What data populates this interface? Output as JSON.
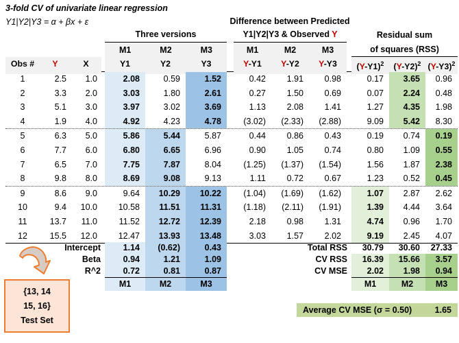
{
  "titles": {
    "line1": "3-fold CV of univariate linear regression",
    "line2": "Y1|Y2|Y3 = α + βx + ε"
  },
  "headers": {
    "three_versions": "Three versions",
    "diff_title": "Difference between Predicted",
    "observed": {
      "pre": "Y1|Y2|Y3 & Observed ",
      "y": "Y"
    },
    "rss1": "Residual sum",
    "rss2": "of squares (RSS)",
    "m": [
      "M1",
      "M2",
      "M3"
    ]
  },
  "cols": {
    "obs": "Obs #",
    "yv": "Y",
    "xv": "X",
    "models": [
      "Y1",
      "Y2",
      "Y3"
    ],
    "diffs": [
      {
        "y": "Y",
        "rest": "-Y1"
      },
      {
        "y": "Y",
        "rest": "-Y2"
      },
      {
        "y": "Y",
        "rest": "-Y3"
      }
    ],
    "squares": [
      {
        "pre": "(",
        "y": "Y",
        "rest": "-Y1)",
        "sup": "2"
      },
      {
        "pre": "(",
        "y": "Y",
        "rest": "-Y2)",
        "sup": "2"
      },
      {
        "pre": "(",
        "y": "Y",
        "rest": "-Y3)",
        "sup": "2"
      }
    ]
  },
  "rows": [
    {
      "obs": "1",
      "y": "2.5",
      "x": "1.0",
      "y1": "2.08",
      "y2": "0.59",
      "y3": "1.52",
      "d1": "0.42",
      "d2": "1.91",
      "d3": "0.98",
      "s1": "0.17",
      "s2": "3.65",
      "s3": "0.96",
      "fold": 1
    },
    {
      "obs": "2",
      "y": "3.3",
      "x": "2.0",
      "y1": "3.03",
      "y2": "1.80",
      "y3": "2.61",
      "d1": "0.27",
      "d2": "1.50",
      "d3": "0.69",
      "s1": "0.07",
      "s2": "2.24",
      "s3": "0.48",
      "fold": 1
    },
    {
      "obs": "3",
      "y": "5.1",
      "x": "3.0",
      "y1": "3.97",
      "y2": "3.02",
      "y3": "3.69",
      "d1": "1.13",
      "d2": "2.08",
      "d3": "1.41",
      "s1": "1.27",
      "s2": "4.35",
      "s3": "1.98",
      "fold": 1
    },
    {
      "obs": "4",
      "y": "1.9",
      "x": "4.0",
      "y1": "4.92",
      "y2": "4.23",
      "y3": "4.78",
      "d1": "(3.02)",
      "d2": "(2.33)",
      "d3": "(2.88)",
      "s1": "9.09",
      "s2": "5.42",
      "s3": "8.30",
      "fold": 1
    },
    {
      "obs": "5",
      "y": "6.3",
      "x": "5.0",
      "y1": "5.86",
      "y2": "5.44",
      "y3": "5.87",
      "d1": "0.44",
      "d2": "0.86",
      "d3": "0.43",
      "s1": "0.19",
      "s2": "0.74",
      "s3": "0.19",
      "fold": 2
    },
    {
      "obs": "6",
      "y": "7.7",
      "x": "6.0",
      "y1": "6.80",
      "y2": "6.65",
      "y3": "6.96",
      "d1": "0.90",
      "d2": "1.05",
      "d3": "0.74",
      "s1": "0.80",
      "s2": "1.09",
      "s3": "0.55",
      "fold": 2
    },
    {
      "obs": "7",
      "y": "6.5",
      "x": "7.0",
      "y1": "7.75",
      "y2": "7.87",
      "y3": "8.04",
      "d1": "(1.25)",
      "d2": "(1.37)",
      "d3": "(1.54)",
      "s1": "1.56",
      "s2": "1.87",
      "s3": "2.38",
      "fold": 2
    },
    {
      "obs": "8",
      "y": "9.8",
      "x": "8.0",
      "y1": "8.69",
      "y2": "9.08",
      "y3": "9.13",
      "d1": "1.11",
      "d2": "0.72",
      "d3": "0.67",
      "s1": "1.23",
      "s2": "0.52",
      "s3": "0.45",
      "fold": 2
    },
    {
      "obs": "9",
      "y": "8.6",
      "x": "9.0",
      "y1": "9.64",
      "y2": "10.29",
      "y3": "10.22",
      "d1": "(1.04)",
      "d2": "(1.69)",
      "d3": "(1.62)",
      "s1": "1.07",
      "s2": "2.87",
      "s3": "2.62",
      "fold": 3
    },
    {
      "obs": "10",
      "y": "9.4",
      "x": "10.0",
      "y1": "10.58",
      "y2": "11.51",
      "y3": "11.31",
      "d1": "(1.18)",
      "d2": "(2.11)",
      "d3": "(1.91)",
      "s1": "1.39",
      "s2": "4.44",
      "s3": "3.64",
      "fold": 3
    },
    {
      "obs": "11",
      "y": "13.7",
      "x": "11.0",
      "y1": "11.52",
      "y2": "12.72",
      "y3": "12.39",
      "d1": "2.18",
      "d2": "0.98",
      "d3": "1.31",
      "s1": "4.74",
      "s2": "0.96",
      "s3": "1.70",
      "fold": 3
    },
    {
      "obs": "12",
      "y": "15.5",
      "x": "12.0",
      "y1": "12.47",
      "y2": "13.93",
      "y3": "13.48",
      "d1": "3.03",
      "d2": "1.57",
      "d3": "2.02",
      "s1": "9.19",
      "s2": "2.45",
      "s3": "4.07",
      "fold": 3
    }
  ],
  "summary_left": {
    "rows": [
      {
        "label": "Intercept",
        "v": [
          "1.14",
          "(0.62)",
          "0.43"
        ]
      },
      {
        "label": "Beta",
        "v": [
          "0.94",
          "1.21",
          "1.09"
        ]
      },
      {
        "label": "R^2",
        "v": [
          "0.72",
          "0.81",
          "0.87"
        ]
      }
    ],
    "footer": [
      "M1",
      "M2",
      "M3"
    ]
  },
  "summary_right": {
    "rows": [
      {
        "label": "Total RSS",
        "v": [
          "30.79",
          "30.60",
          "27.33"
        ]
      },
      {
        "label": "CV RSS",
        "v": [
          "16.39",
          "15.66",
          "3.57"
        ]
      },
      {
        "label": "CV MSE",
        "v": [
          "2.02",
          "1.98",
          "0.94"
        ]
      }
    ],
    "footer": [
      "M1",
      "M2",
      "M3"
    ]
  },
  "average": {
    "label": "Average CV MSE (σ = 0.50)",
    "value": "1.65"
  },
  "note": {
    "lines": [
      "{13, 14",
      "15, 16}",
      "Test Set"
    ]
  },
  "colors": {
    "blue1": "#DDEBF7",
    "blue2": "#BDD7EE",
    "blue3": "#9CC3E5",
    "green1": "#E2EFD9",
    "green2": "#C5E0B3",
    "green3": "#A8D08D",
    "gray": "#F1F1F1",
    "avg": "#C4D79B",
    "red": "#C00000",
    "orange": "#ED7D31",
    "peach": "#FCE4D6",
    "arrowfill": "#D6CCC3"
  }
}
